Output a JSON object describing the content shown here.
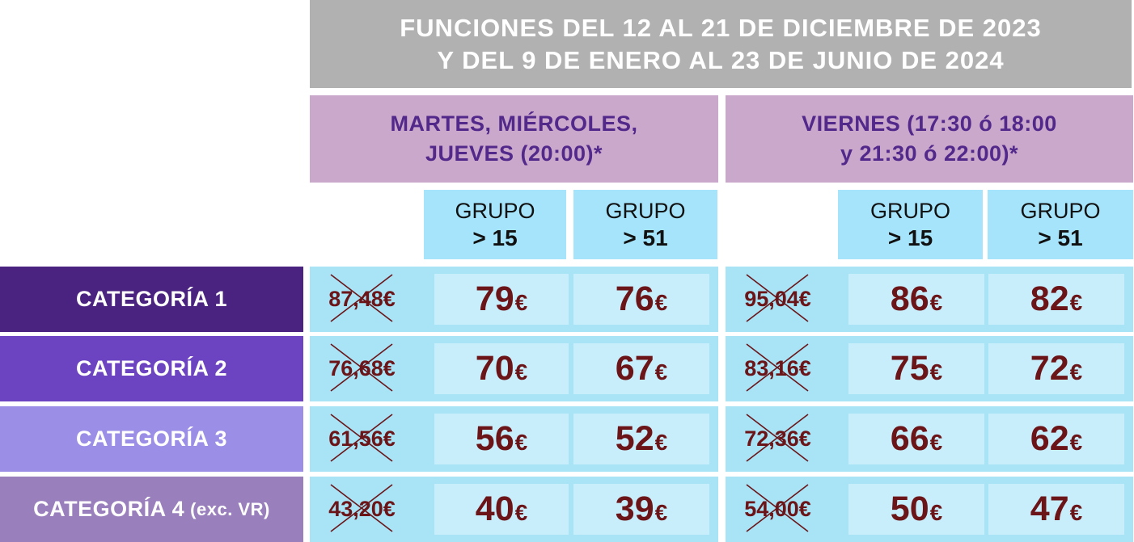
{
  "header": {
    "line1": "FUNCIONES DEL 12 AL 21 DE DICIEMBRE DE 2023",
    "line2": "Y DEL 9 DE ENERO AL 23 DE JUNIO DE 2024"
  },
  "days": [
    {
      "line1": "MARTES, MIÉRCOLES,",
      "line2": "JUEVES (20:00)*"
    },
    {
      "line1": "VIERNES (17:30 ó 18:00",
      "line2": "y 21:30 ó 22:00)*"
    }
  ],
  "groups": [
    {
      "label": "GRUPO",
      "value": "> 15"
    },
    {
      "label": "GRUPO",
      "value": "> 51"
    },
    {
      "label": "GRUPO",
      "value": "> 15"
    },
    {
      "label": "GRUPO",
      "value": "> 51"
    }
  ],
  "currency": "€",
  "rows": [
    {
      "category": "CATEGORÍA 1",
      "note": "",
      "color": "#4a2380",
      "old1": "87,48€",
      "g15a": "79",
      "g51a": "76",
      "old2": "95,04€",
      "g15b": "86",
      "g51b": "82"
    },
    {
      "category": "CATEGORÍA 2",
      "note": "",
      "color": "#6c43c0",
      "old1": "76,68€",
      "g15a": "70",
      "g51a": "67",
      "old2": "83,16€",
      "g15b": "75",
      "g51b": "72"
    },
    {
      "category": "CATEGORÍA 3",
      "note": "",
      "color": "#9a8ee6",
      "old1": "61,56€",
      "g15a": "56",
      "g51a": "52",
      "old2": "72,36€",
      "g15b": "66",
      "g51b": "62"
    },
    {
      "category": "CATEGORÍA 4",
      "note": "(exc. VR)",
      "color": "#9a7fbd",
      "old1": "43,20€",
      "g15a": "40",
      "g51a": "39",
      "old2": "54,00€",
      "g15b": "50",
      "g51b": "47"
    }
  ]
}
